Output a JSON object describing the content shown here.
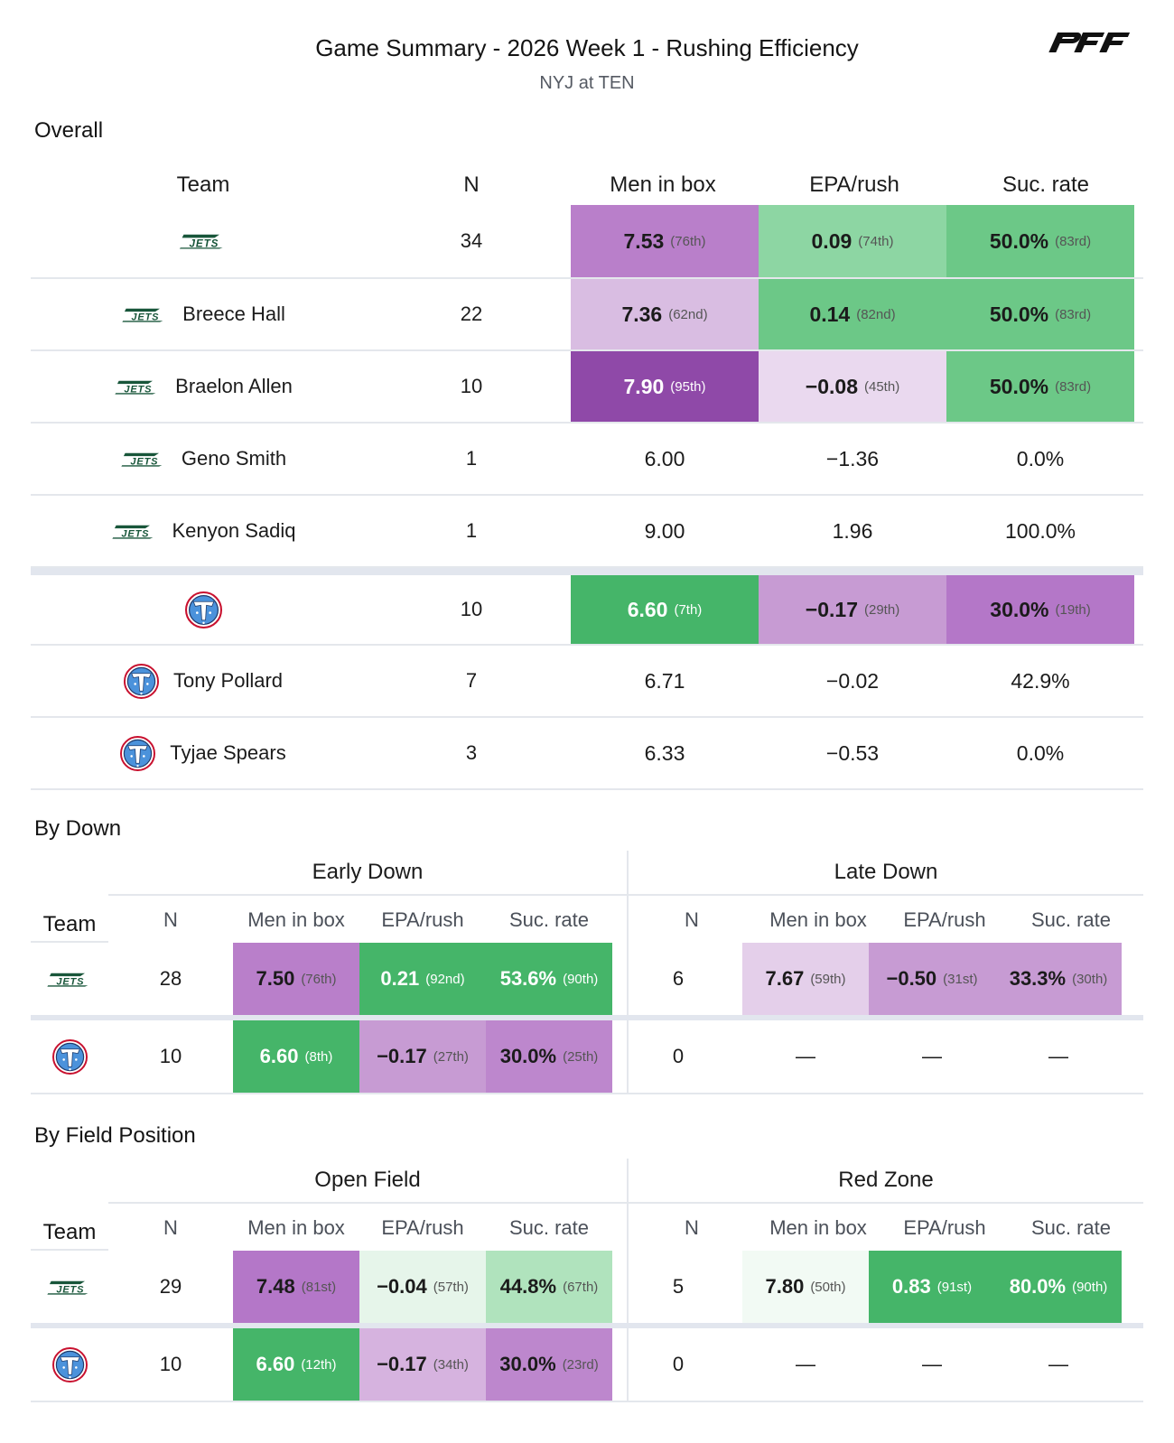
{
  "header": {
    "title": "Game Summary - 2026 Week 1 - Rushing Efficiency",
    "subtitle": "NYJ at TEN",
    "brand_logo": "PFF"
  },
  "colors": {
    "purple_dark": "#8f49a8",
    "purple_mid": "#b97fca",
    "purple_med": "#c79bd3",
    "purple_soft": "#d9bde2",
    "purple_pale": "#ead9ef",
    "green_strong": "#45b569",
    "green_mid": "#6cc887",
    "green_light": "#8dd6a3",
    "green_pale": "#b0e3bd",
    "green_faint": "#e6f5ea",
    "green_whisper": "#f2faf4",
    "jets_green": "#18563a",
    "titans_blue": "#4b92db",
    "titans_red": "#c8102e"
  },
  "overall": {
    "section_label": "Overall",
    "headers": {
      "team": "Team",
      "n": "N",
      "men": "Men in box",
      "epa": "EPA/rush",
      "suc": "Suc. rate"
    },
    "rows": [
      {
        "team": "NYJ",
        "player": "",
        "n": "34",
        "men": "7.53",
        "men_rank": "(76th)",
        "epa": "0.09",
        "epa_rank": "(74th)",
        "suc": "50.0%",
        "suc_rank": "(83rd)",
        "men_color": "#b97fca",
        "epa_color": "#8dd6a3",
        "suc_color": "#6cc887",
        "men_light": false,
        "epa_light": false,
        "suc_light": false
      },
      {
        "team": "NYJ",
        "player": "Breece Hall",
        "n": "22",
        "men": "7.36",
        "men_rank": "(62nd)",
        "epa": "0.14",
        "epa_rank": "(82nd)",
        "suc": "50.0%",
        "suc_rank": "(83rd)",
        "men_color": "#d9bde2",
        "epa_color": "#6cc887",
        "suc_color": "#6cc887",
        "men_light": false,
        "epa_light": false,
        "suc_light": false
      },
      {
        "team": "NYJ",
        "player": "Braelon Allen",
        "n": "10",
        "men": "7.90",
        "men_rank": "(95th)",
        "epa": "−0.08",
        "epa_rank": "(45th)",
        "suc": "50.0%",
        "suc_rank": "(83rd)",
        "men_color": "#8f49a8",
        "epa_color": "#ead9ef",
        "suc_color": "#6cc887",
        "men_light": true,
        "epa_light": false,
        "suc_light": false
      },
      {
        "team": "NYJ",
        "player": "Geno Smith",
        "n": "1",
        "men": "6.00",
        "men_rank": "",
        "epa": "−1.36",
        "epa_rank": "",
        "suc": "0.0%",
        "suc_rank": "",
        "men_color": "",
        "epa_color": "",
        "suc_color": "",
        "men_light": false,
        "epa_light": false,
        "suc_light": false
      },
      {
        "team": "NYJ",
        "player": "Kenyon Sadiq",
        "n": "1",
        "men": "9.00",
        "men_rank": "",
        "epa": "1.96",
        "epa_rank": "",
        "suc": "100.0%",
        "suc_rank": "",
        "men_color": "",
        "epa_color": "",
        "suc_color": "",
        "men_light": false,
        "epa_light": false,
        "suc_light": false
      },
      {
        "team": "TEN",
        "player": "",
        "n": "10",
        "men": "6.60",
        "men_rank": "(7th)",
        "epa": "−0.17",
        "epa_rank": "(29th)",
        "suc": "30.0%",
        "suc_rank": "(19th)",
        "men_color": "#45b569",
        "epa_color": "#c79bd3",
        "suc_color": "#b477c8",
        "men_light": true,
        "epa_light": false,
        "suc_light": false
      },
      {
        "team": "TEN",
        "player": "Tony Pollard",
        "n": "7",
        "men": "6.71",
        "men_rank": "",
        "epa": "−0.02",
        "epa_rank": "",
        "suc": "42.9%",
        "suc_rank": "",
        "men_color": "",
        "epa_color": "",
        "suc_color": "",
        "men_light": false,
        "epa_light": false,
        "suc_light": false
      },
      {
        "team": "TEN",
        "player": "Tyjae Spears",
        "n": "3",
        "men": "6.33",
        "men_rank": "",
        "epa": "−0.53",
        "epa_rank": "",
        "suc": "0.0%",
        "suc_rank": "",
        "men_color": "",
        "epa_color": "",
        "suc_color": "",
        "men_light": false,
        "epa_light": false,
        "suc_light": false
      }
    ]
  },
  "by_down": {
    "section_label": "By Down",
    "group_left": "Early Down",
    "group_right": "Late Down",
    "headers": {
      "team": "Team",
      "n": "N",
      "men": "Men in box",
      "epa": "EPA/rush",
      "suc": "Suc. rate"
    },
    "rows": [
      {
        "team": "NYJ",
        "left": {
          "n": "28",
          "men": "7.50",
          "men_rank": "(76th)",
          "epa": "0.21",
          "epa_rank": "(92nd)",
          "suc": "53.6%",
          "suc_rank": "(90th)",
          "men_color": "#b97fca",
          "epa_color": "#45b569",
          "suc_color": "#45b569",
          "men_light": false,
          "epa_light": true,
          "suc_light": true
        },
        "right": {
          "n": "6",
          "men": "7.67",
          "men_rank": "(59th)",
          "epa": "−0.50",
          "epa_rank": "(31st)",
          "suc": "33.3%",
          "suc_rank": "(30th)",
          "men_color": "#e4cfea",
          "epa_color": "#c79bd3",
          "suc_color": "#c79bd3",
          "men_light": false,
          "epa_light": false,
          "suc_light": false
        }
      },
      {
        "team": "TEN",
        "left": {
          "n": "10",
          "men": "6.60",
          "men_rank": "(8th)",
          "epa": "−0.17",
          "epa_rank": "(27th)",
          "suc": "30.0%",
          "suc_rank": "(25th)",
          "men_color": "#45b569",
          "epa_color": "#c79bd3",
          "suc_color": "#bd87cd",
          "men_light": true,
          "epa_light": false,
          "suc_light": false
        },
        "right": {
          "n": "0",
          "men": "—",
          "men_rank": "",
          "epa": "—",
          "epa_rank": "",
          "suc": "—",
          "suc_rank": "",
          "men_color": "",
          "epa_color": "",
          "suc_color": "",
          "men_light": false,
          "epa_light": false,
          "suc_light": false
        }
      }
    ]
  },
  "by_field": {
    "section_label": "By Field Position",
    "group_left": "Open Field",
    "group_right": "Red Zone",
    "headers": {
      "team": "Team",
      "n": "N",
      "men": "Men in box",
      "epa": "EPA/rush",
      "suc": "Suc. rate"
    },
    "rows": [
      {
        "team": "NYJ",
        "left": {
          "n": "29",
          "men": "7.48",
          "men_rank": "(81st)",
          "epa": "−0.04",
          "epa_rank": "(57th)",
          "suc": "44.8%",
          "suc_rank": "(67th)",
          "men_color": "#b477c8",
          "epa_color": "#e6f5ea",
          "suc_color": "#b0e3bd",
          "men_light": false,
          "epa_light": false,
          "suc_light": false
        },
        "right": {
          "n": "5",
          "men": "7.80",
          "men_rank": "(50th)",
          "epa": "0.83",
          "epa_rank": "(91st)",
          "suc": "80.0%",
          "suc_rank": "(90th)",
          "men_color": "#f2faf4",
          "epa_color": "#45b569",
          "suc_color": "#45b569",
          "men_light": false,
          "epa_light": true,
          "suc_light": true
        }
      },
      {
        "team": "TEN",
        "left": {
          "n": "10",
          "men": "6.60",
          "men_rank": "(12th)",
          "epa": "−0.17",
          "epa_rank": "(34th)",
          "suc": "30.0%",
          "suc_rank": "(23rd)",
          "men_color": "#45b569",
          "epa_color": "#d6b3df",
          "suc_color": "#bd87cd",
          "men_light": true,
          "epa_light": false,
          "suc_light": false
        },
        "right": {
          "n": "0",
          "men": "—",
          "men_rank": "",
          "epa": "—",
          "epa_rank": "",
          "suc": "—",
          "suc_rank": "",
          "men_color": "",
          "epa_color": "",
          "suc_color": "",
          "men_light": false,
          "epa_light": false,
          "suc_light": false
        }
      }
    ]
  }
}
